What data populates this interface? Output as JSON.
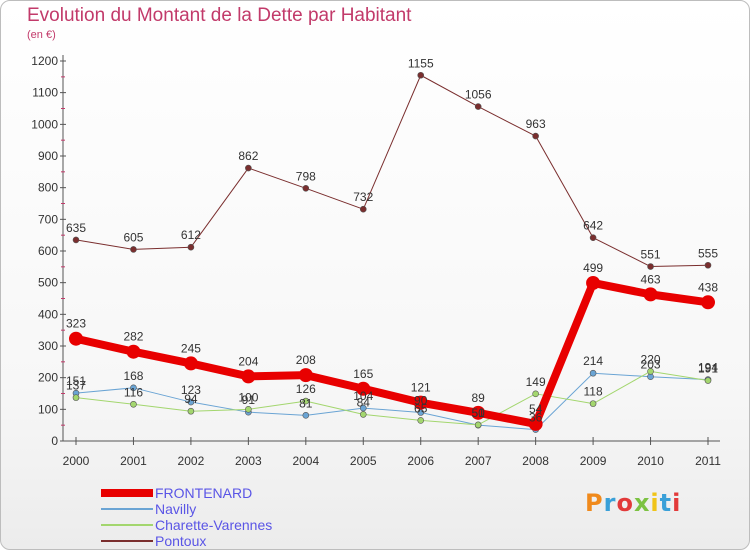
{
  "header": {
    "title": "Evolution du Montant de la Dette par Habitant",
    "subtitle": "(en €)"
  },
  "logo": {
    "text": "Proxiti",
    "colors": [
      "#f08a1c",
      "#3aa0d8",
      "#e23a3a",
      "#7cc242",
      "#f0c419",
      "#3aa0d8",
      "#e23a3a"
    ]
  },
  "chart_data": {
    "type": "line",
    "x": [
      "2000",
      "2001",
      "2002",
      "2003",
      "2004",
      "2005",
      "2006",
      "2007",
      "2008",
      "2009",
      "2010",
      "2011"
    ],
    "ylim": [
      0,
      1200
    ],
    "yticks": [
      0,
      100,
      200,
      300,
      400,
      500,
      600,
      700,
      800,
      900,
      1000,
      1100,
      1200
    ],
    "grid": false,
    "legend_position": "bottom-left",
    "series": [
      {
        "name": "Pontoux",
        "color": "#7a2e2e",
        "width": 1,
        "values": [
          635,
          605,
          612,
          862,
          798,
          732,
          1155,
          1056,
          963,
          642,
          551,
          555
        ],
        "labels": [
          "635",
          "605",
          "612",
          "862",
          "798",
          "732",
          "1155",
          "1056",
          "963",
          "642",
          "551",
          "555"
        ]
      },
      {
        "name": "Navilly",
        "color": "#6aa4d4",
        "width": 1,
        "values": [
          151,
          168,
          123,
          91,
          81,
          104,
          90,
          50,
          36,
          214,
          203,
          194
        ],
        "labels": [
          "151",
          "168",
          "123",
          "91",
          "81",
          "104",
          "90",
          "50",
          "36",
          "214",
          "203",
          "194"
        ]
      },
      {
        "name": "Charette-Varennes",
        "color": "#a3d66e",
        "width": 1,
        "values": [
          137,
          116,
          94,
          100,
          126,
          84,
          65,
          51,
          149,
          118,
          220,
          191
        ],
        "labels": [
          "137",
          "116",
          "94",
          "100",
          "126",
          "84",
          "65",
          "51",
          "149",
          "118",
          "220",
          "191"
        ]
      },
      {
        "name": "FRONTENARD",
        "color": "#e80000",
        "width": 8,
        "values": [
          323,
          282,
          245,
          204,
          208,
          165,
          121,
          89,
          54,
          499,
          463,
          438
        ],
        "labels": [
          "323",
          "282",
          "245",
          "204",
          "208",
          "165",
          "121",
          "89",
          "54",
          "499",
          "463",
          "438"
        ]
      }
    ],
    "legend_order": [
      "FRONTENARD",
      "Navilly",
      "Charette-Varennes",
      "Pontoux"
    ]
  }
}
